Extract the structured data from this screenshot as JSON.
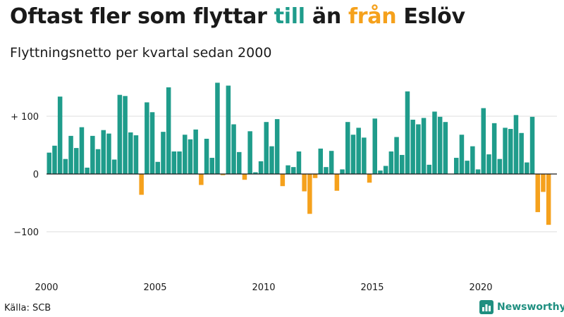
{
  "title": {
    "part1": "Oftast fler som flyttar ",
    "part_to": "till",
    "part2": " än ",
    "part_from": "från",
    "part3": " Eslöv"
  },
  "subtitle": "Flyttningsnetto per kvartal sedan 2000",
  "source": "Källa: SCB",
  "brand": {
    "name": "Newsworthy",
    "icon": "bar-chart-logo-icon"
  },
  "colors": {
    "positive": "#1f9c8b",
    "negative": "#f5a11c",
    "grid": "#dddddd",
    "zero_line": "#1a1a1a"
  },
  "chart_data": {
    "type": "bar",
    "xlabel": "",
    "ylabel": "",
    "ylim": [
      -125,
      160
    ],
    "grid": true,
    "yticks": [
      {
        "value": 100,
        "label": "+ 100"
      },
      {
        "value": 0,
        "label": "0"
      },
      {
        "value": -100,
        "label": "−100"
      }
    ],
    "xticks": [
      {
        "value": 2000,
        "label": "2000"
      },
      {
        "value": 2005,
        "label": "2005"
      },
      {
        "value": 2010,
        "label": "2010"
      },
      {
        "value": 2015,
        "label": "2015"
      },
      {
        "value": 2020,
        "label": "2020"
      }
    ],
    "start_year": 2000,
    "quarters_per_year": 4,
    "values": [
      37,
      49,
      134,
      26,
      66,
      45,
      81,
      11,
      66,
      43,
      76,
      70,
      25,
      137,
      135,
      72,
      67,
      -36,
      124,
      107,
      21,
      73,
      150,
      39,
      39,
      68,
      60,
      77,
      -19,
      61,
      28,
      158,
      -2,
      153,
      86,
      38,
      -10,
      74,
      3,
      22,
      90,
      48,
      95,
      -21,
      15,
      12,
      39,
      -30,
      -69,
      -7,
      44,
      12,
      40,
      -29,
      8,
      90,
      68,
      80,
      63,
      -15,
      96,
      6,
      14,
      39,
      64,
      33,
      143,
      94,
      86,
      97,
      16,
      108,
      99,
      90,
      0,
      28,
      68,
      23,
      48,
      8,
      114,
      34,
      88,
      26,
      80,
      78,
      102,
      71,
      20,
      99,
      -66,
      -31,
      -88
    ]
  }
}
